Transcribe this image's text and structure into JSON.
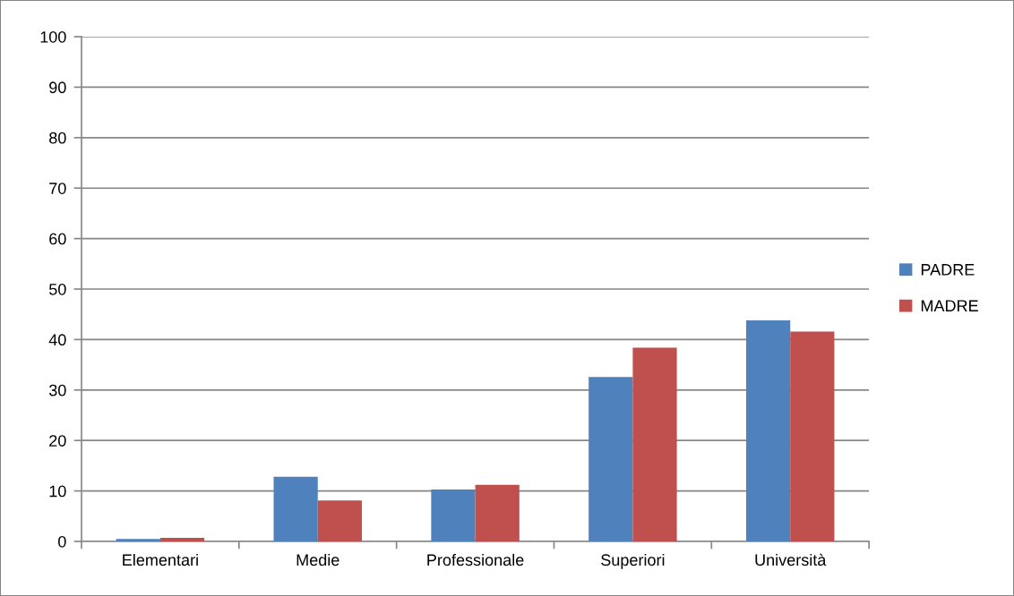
{
  "chart_data": {
    "type": "bar",
    "categories": [
      "Elementari",
      "Medie",
      "Professionale",
      "Superiori",
      "Università"
    ],
    "series": [
      {
        "name": "PADRE",
        "color": "#4f81bd",
        "values": [
          0.5,
          12.8,
          10.3,
          32.6,
          43.8
        ]
      },
      {
        "name": "MADRE",
        "color": "#c0504d",
        "values": [
          0.7,
          8.1,
          11.2,
          38.4,
          41.6
        ]
      }
    ],
    "ylim": [
      0,
      100
    ],
    "yticks": [
      0,
      10,
      20,
      30,
      40,
      50,
      60,
      70,
      80,
      90,
      100
    ],
    "grid": "y",
    "legend": "right"
  }
}
